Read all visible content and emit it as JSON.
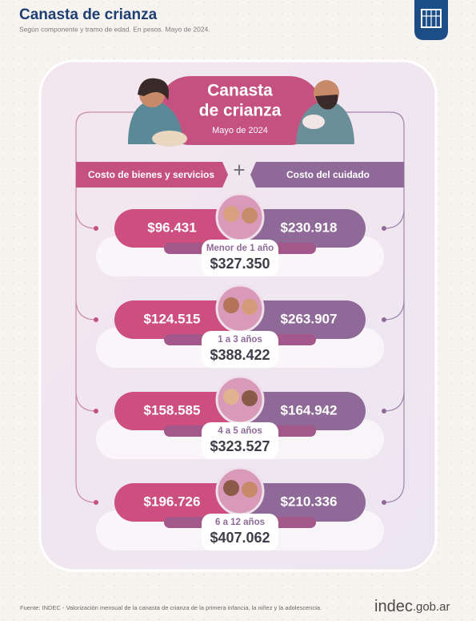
{
  "header": {
    "title": "Canasta de crianza",
    "subtitle": "Según componente y tramo de edad. En pesos. Mayo de 2024."
  },
  "card": {
    "title_line1": "Canasta",
    "title_line2": "de crianza",
    "date": "Mayo de 2024",
    "plus": "+",
    "left_label": "Costo de bienes y servicios",
    "right_label": "Costo del cuidado"
  },
  "groups": [
    {
      "left": "$96.431",
      "right": "$230.918",
      "age": "Menor de 1 año",
      "total": "$327.350"
    },
    {
      "left": "$124.515",
      "right": "$263.907",
      "age": "1 a 3 años",
      "total": "$388.422"
    },
    {
      "left": "$158.585",
      "right": "$164.942",
      "age": "4 a 5 años",
      "total": "$323.527"
    },
    {
      "left": "$196.726",
      "right": "$210.336",
      "age": "6 a 12 años",
      "total": "$407.062"
    }
  ],
  "footer": {
    "source": "Fuente: INDEC - Valorización mensual de la canasta de crianza de la primera infancia, la niñez y la adolescencia.",
    "brand": "indec",
    "domain": ".gob.ar"
  }
}
